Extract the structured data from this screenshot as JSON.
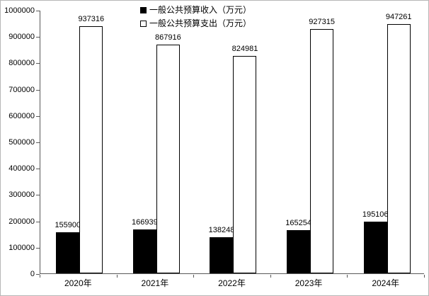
{
  "chart_data": {
    "type": "bar",
    "title": "",
    "xlabel": "",
    "ylabel": "",
    "categories": [
      "2020年",
      "2021年",
      "2022年",
      "2023年",
      "2024年"
    ],
    "series": [
      {
        "name": "一般公共预算收入（万元）",
        "values": [
          155900,
          166939,
          138248,
          165254,
          195106
        ],
        "fill": "#000000",
        "legend_marker": "filled-square"
      },
      {
        "name": "一般公共预算支出（万元）",
        "values": [
          937316,
          867916,
          824981,
          927315,
          947261
        ],
        "fill": "#ffffff",
        "legend_marker": "hollow-square"
      }
    ],
    "ylim": [
      0,
      1000000
    ],
    "ytick_step": 100000,
    "ytick_labels": [
      "0",
      "100000",
      "200000",
      "300000",
      "400000",
      "500000",
      "600000",
      "700000",
      "800000",
      "900000",
      "1000000"
    ],
    "grid": false,
    "data_labels": true,
    "legend_position": "top-center",
    "colors": {
      "axis": "#595959",
      "text": "#000000",
      "background": "#ffffff",
      "frame_border": "#b7b7b7",
      "bar_outline": "#000000"
    }
  }
}
